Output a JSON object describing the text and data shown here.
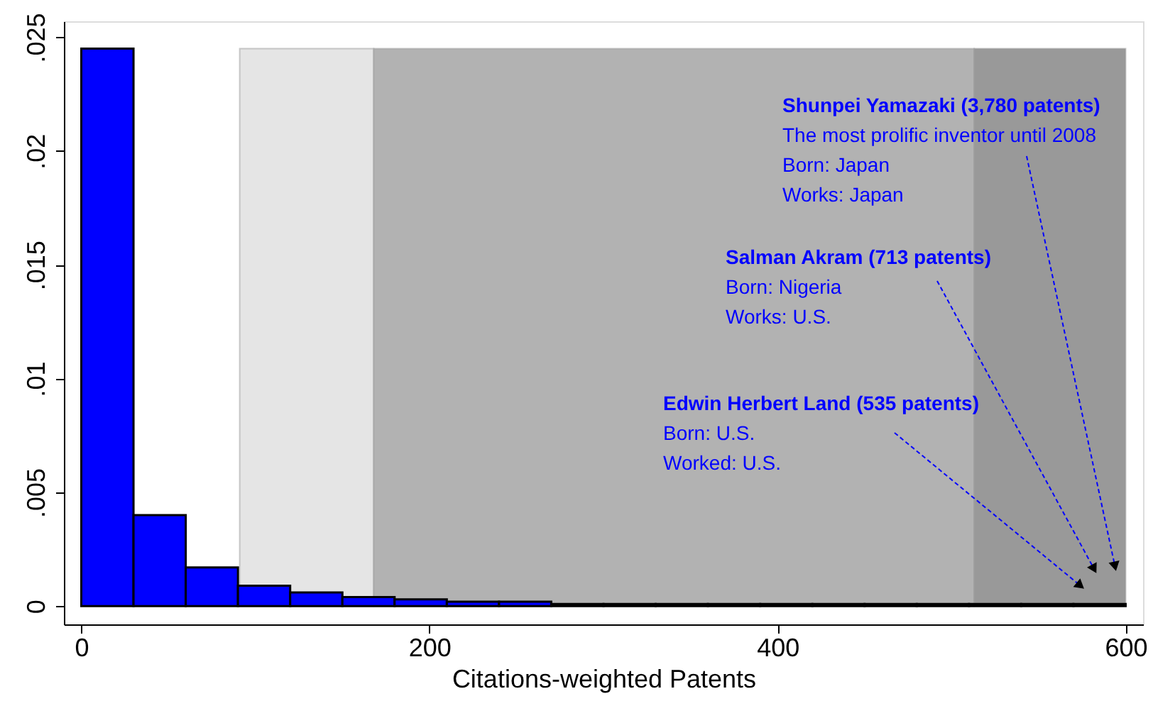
{
  "chart_data": {
    "type": "histogram",
    "xlabel": "Citations-weighted Patents",
    "bins": [
      0,
      30,
      60,
      90,
      120,
      150,
      180,
      210,
      240,
      270,
      300,
      330,
      360,
      390,
      420,
      450,
      480,
      510,
      540,
      570,
      600
    ],
    "values": [
      0.0245,
      0.004,
      0.0017,
      0.0009,
      0.0006,
      0.0004,
      0.0003,
      0.0002,
      0.0002,
      0.0001,
      0.0001,
      0.0001,
      0.0001,
      0.0001,
      0.0001,
      0.0001,
      0.0001,
      0.0001,
      0.0001,
      0.0001
    ],
    "color": "#0000ff",
    "xlim": [
      -10,
      610
    ],
    "xticks": [
      0,
      200,
      400,
      600
    ],
    "ylim": [
      -0.0008,
      0.0257
    ],
    "yticks": [
      {
        "value": 0,
        "label": "0"
      },
      {
        "value": 0.005,
        "label": ".005"
      },
      {
        "value": 0.01,
        "label": ".01"
      },
      {
        "value": 0.015,
        "label": ".015"
      },
      {
        "value": 0.02,
        "label": ".02"
      },
      {
        "value": 0.025,
        "label": ".025"
      }
    ],
    "bands": [
      {
        "axis": "x",
        "from": 91,
        "to": 168,
        "color": "#e5e5e5"
      },
      {
        "axis": "x",
        "from": 168,
        "to": 513,
        "color": "#b2b2b2"
      },
      {
        "axis": "x",
        "from": 513,
        "to": 600,
        "color": "#999999"
      }
    ],
    "annotations": [
      "Shunpei Yamazaki (3,780 patents)\nThe most prolific inventor until 2008\nBorn: Japan\nWorks: Japan",
      "Salman Akram (713 patents)\nBorn: Nigeria\nWorks: U.S.",
      "Edwin Herbert Land (535 patents)\nBorn: U.S.\nWorked: U.S."
    ],
    "grid": false
  }
}
